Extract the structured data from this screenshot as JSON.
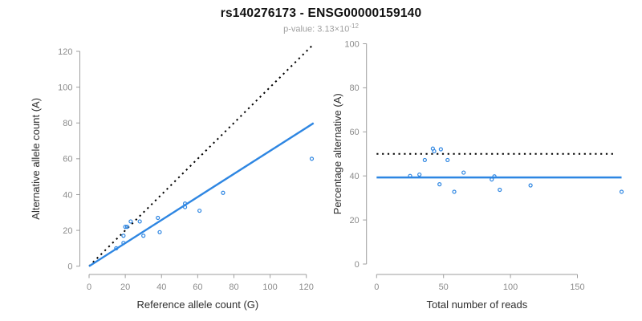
{
  "header": {
    "title": "rs140276173 - ENSG00000159140",
    "subtitle_prefix": "p-value: 3.13×10",
    "subtitle_exponent": "-12"
  },
  "colors": {
    "accent_blue": "#2E86E2",
    "dotted_black": "#000000",
    "axis_gray": "#9e9e9e",
    "tick_label_gray": "#8c8c8c",
    "axis_title_color": "#2e2e2e",
    "title_color": "#111111",
    "subtitle_gray": "#a0a0a0",
    "background": "#ffffff"
  },
  "chart_data": [
    {
      "type": "scatter",
      "name": "allele-counts-plot",
      "xlabel": "Reference allele count (G)",
      "ylabel": "Alternative allele count (A)",
      "xlim": [
        0,
        124
      ],
      "ylim": [
        0,
        124
      ],
      "xticks": [
        0,
        20,
        40,
        60,
        80,
        100,
        120
      ],
      "yticks": [
        0,
        20,
        40,
        60,
        80,
        100,
        120
      ],
      "grid": false,
      "legend": "none",
      "point_color": "#2E86E2",
      "points": [
        [
          15,
          10
        ],
        [
          19,
          13
        ],
        [
          19,
          17
        ],
        [
          20,
          22
        ],
        [
          21,
          22
        ],
        [
          23,
          25
        ],
        [
          28,
          25
        ],
        [
          30,
          17
        ],
        [
          38,
          27
        ],
        [
          39,
          19
        ],
        [
          53,
          33
        ],
        [
          53,
          35
        ],
        [
          61,
          31
        ],
        [
          74,
          41
        ],
        [
          123,
          60
        ]
      ],
      "lines": [
        {
          "name": "identity-line",
          "style": "dotted",
          "color": "#000000",
          "width": 2,
          "x": [
            0,
            124
          ],
          "y": [
            0,
            124
          ]
        },
        {
          "name": "fit-line",
          "style": "solid",
          "color": "#2E86E2",
          "width": 2.4,
          "x": [
            0,
            124
          ],
          "y": [
            0,
            79.9
          ]
        }
      ]
    },
    {
      "type": "scatter",
      "name": "percentage-alternative-plot",
      "xlabel": "Total number of reads",
      "ylabel": "Percentage alternative (A)",
      "xlim": [
        0,
        185
      ],
      "ylim": [
        0,
        100
      ],
      "xticks": [
        0,
        50,
        100,
        150
      ],
      "yticks": [
        0,
        20,
        40,
        60,
        80,
        100
      ],
      "grid": false,
      "legend": "none",
      "point_color": "#2E86E2",
      "points": [
        [
          25,
          40.0
        ],
        [
          32,
          40.6
        ],
        [
          36,
          47.2
        ],
        [
          42,
          52.4
        ],
        [
          43,
          51.2
        ],
        [
          48,
          52.1
        ],
        [
          47,
          36.2
        ],
        [
          53,
          47.2
        ],
        [
          58,
          32.8
        ],
        [
          65,
          41.5
        ],
        [
          86,
          38.4
        ],
        [
          88,
          39.8
        ],
        [
          92,
          33.7
        ],
        [
          115,
          35.7
        ],
        [
          183,
          32.8
        ]
      ],
      "lines": [
        {
          "name": "fifty-percent-line",
          "style": "dotted",
          "color": "#000000",
          "width": 2,
          "x": [
            0,
            178
          ],
          "y": [
            50,
            50
          ]
        },
        {
          "name": "mean-percentage-line",
          "style": "solid",
          "color": "#2E86E2",
          "width": 2.4,
          "x": [
            0,
            183
          ],
          "y": [
            39.3,
            39.3
          ]
        }
      ]
    }
  ]
}
